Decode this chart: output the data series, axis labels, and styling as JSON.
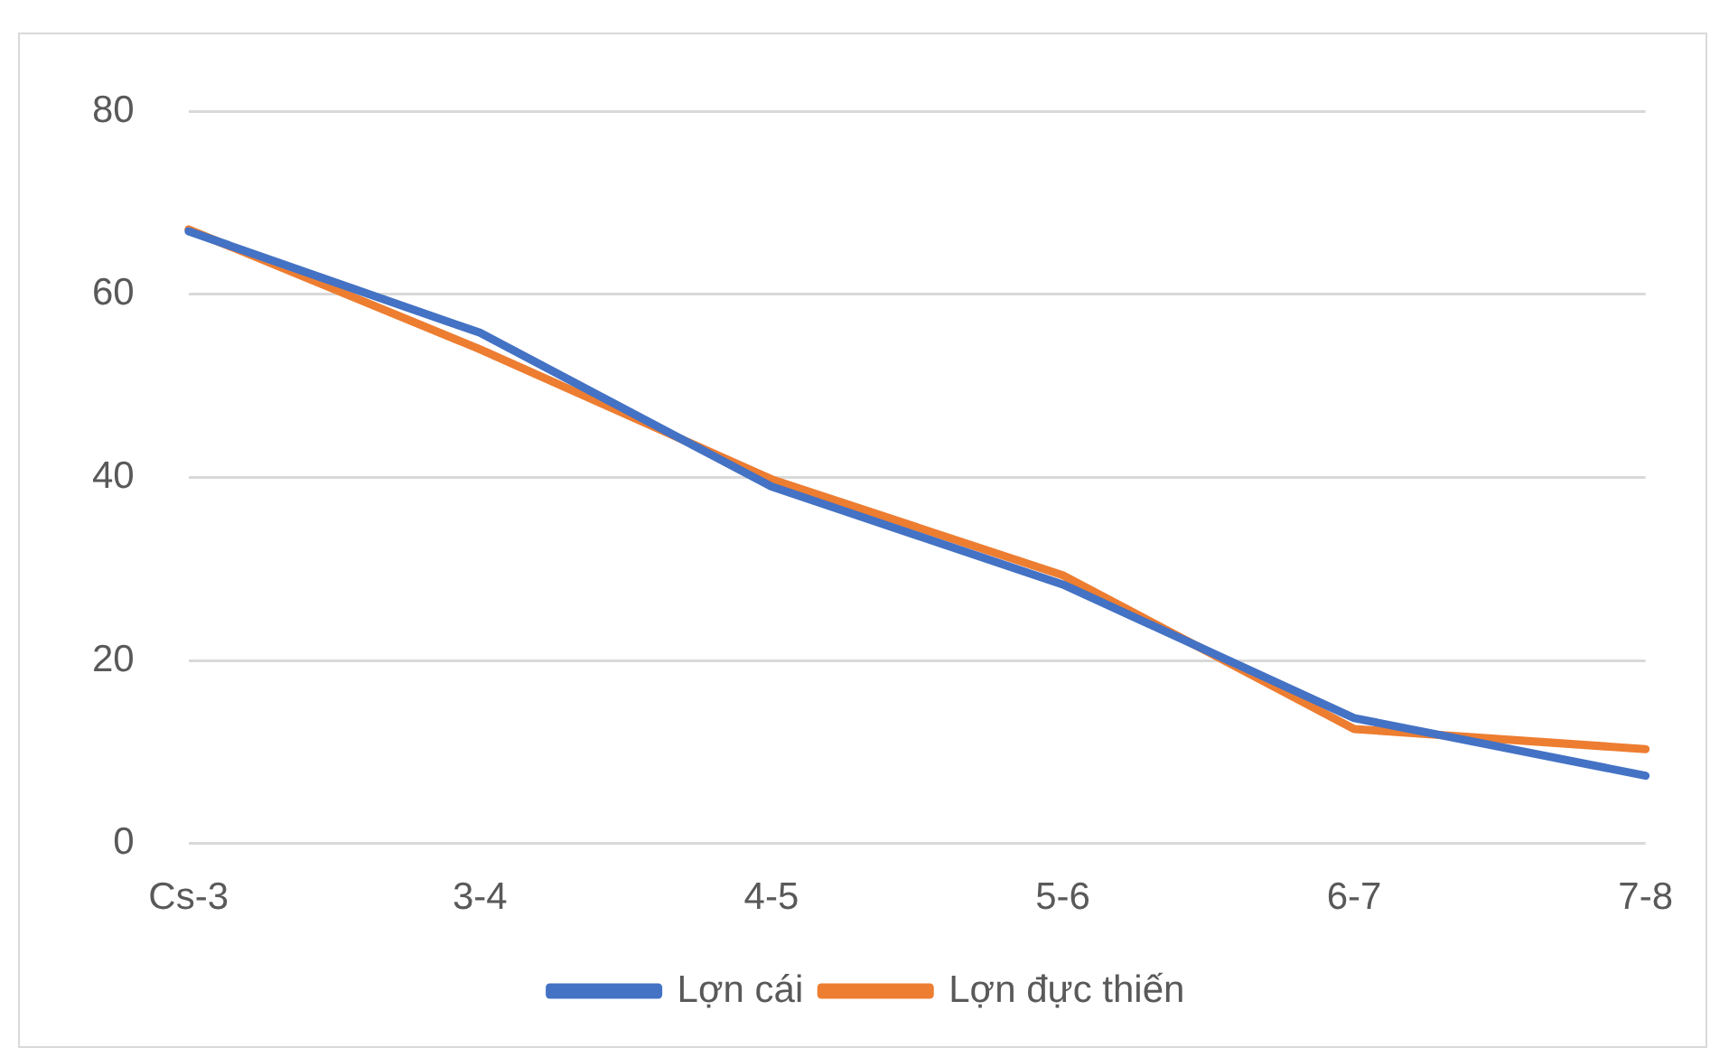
{
  "chart_data": {
    "type": "line",
    "categories": [
      "Cs-3",
      "3-4",
      "4-5",
      "5-6",
      "6-7",
      "7-8"
    ],
    "series": [
      {
        "name": "Lợn cái",
        "color": "#4472c4",
        "values": [
          66.9,
          55.8,
          39,
          28.3,
          13.7,
          7.4
        ]
      },
      {
        "name": "Lợn đực thiến",
        "color": "#ed7d31",
        "values": [
          67.1,
          54,
          39.8,
          29.3,
          12.5,
          10.3
        ]
      }
    ],
    "ylim": [
      0,
      80
    ],
    "yticks": [
      0,
      20,
      40,
      60,
      80
    ],
    "grid": "y",
    "legend": "bottom",
    "marker": "none",
    "line_style": "solid"
  }
}
